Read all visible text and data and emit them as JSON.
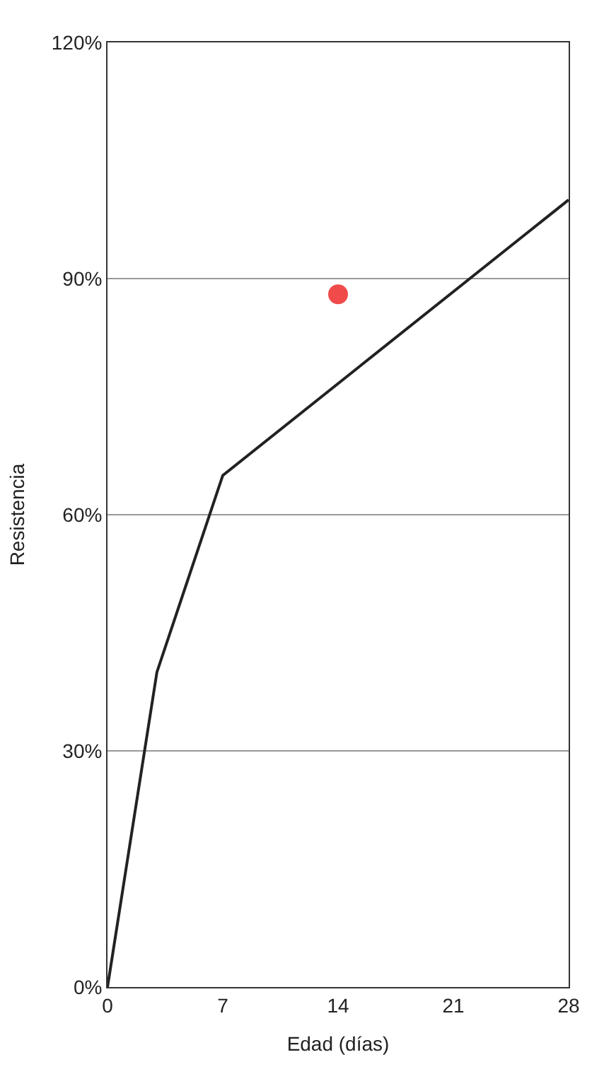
{
  "chart_data": {
    "type": "line",
    "xlabel": "Edad (días)",
    "ylabel": "Resistencia",
    "x": [
      0,
      3,
      7,
      28
    ],
    "series": [
      {
        "color": "#222222",
        "values": [
          0,
          40,
          65,
          100
        ],
        "marker": "none"
      },
      {
        "type": "scatter",
        "color": "#f04a4a",
        "x": [
          14
        ],
        "values": [
          88
        ],
        "marker": "circle"
      }
    ],
    "xlim": [
      0,
      28
    ],
    "xticks": [
      0,
      7,
      14,
      21,
      28
    ],
    "ylim": [
      0,
      120
    ],
    "yticks": [
      {
        "value": 0,
        "label": "0%"
      },
      {
        "value": 30,
        "label": "30%"
      },
      {
        "value": 60,
        "label": "60%"
      },
      {
        "value": 90,
        "label": "90%"
      },
      {
        "value": 120,
        "label": "120%"
      }
    ],
    "grid": "y",
    "line_style": "solid"
  }
}
